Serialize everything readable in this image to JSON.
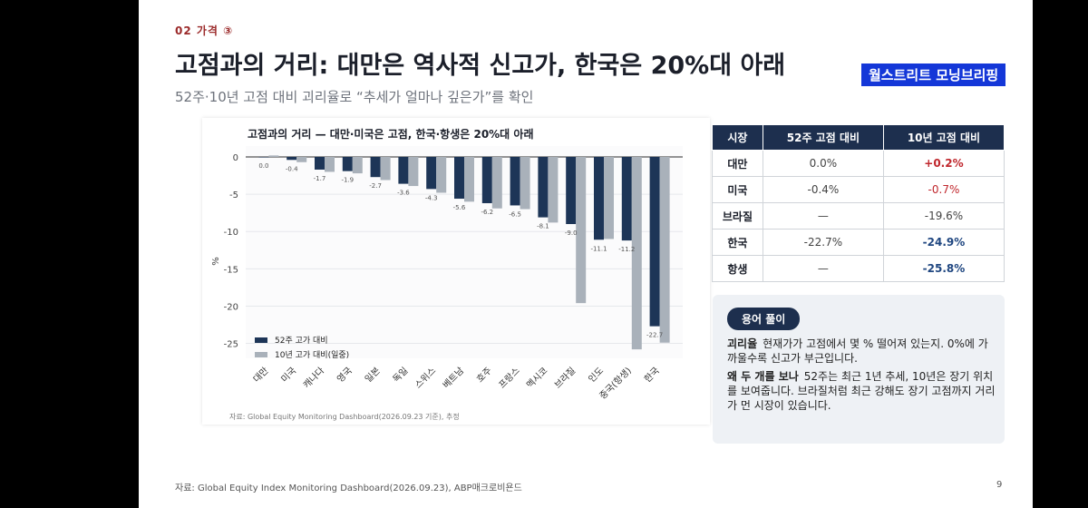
{
  "section": "02  가격 ③",
  "title": "고점과의 거리: 대만은 역사적 신고가, 한국은 20%대 아래",
  "subtitle": "52주·10년 고점 대비 괴리율로 “추세가 얼마나 깊은가”를 확인",
  "badge": "월스트리트 모닝브리핑",
  "chart_data": {
    "type": "bar",
    "title": "고점과의 거리 — 대만·미국은 고점, 한국·항생은 20%대 아래",
    "ylabel": "%",
    "ylim": [
      -27,
      0
    ],
    "yticks": [
      0,
      -5,
      -10,
      -15,
      -20,
      -25
    ],
    "categories": [
      "대만",
      "미국",
      "캐나다",
      "영국",
      "일본",
      "독일",
      "스위스",
      "베트남",
      "호주",
      "프랑스",
      "멕시코",
      "브라질",
      "인도",
      "중국(항생)",
      "한국"
    ],
    "series": [
      {
        "name": "52주 고가 대비",
        "color": "#1d3557",
        "values": [
          0.0,
          -0.4,
          -1.7,
          -1.9,
          -2.7,
          -3.6,
          -4.3,
          -5.6,
          -6.2,
          -6.5,
          -8.1,
          -9.0,
          -11.1,
          -11.2,
          -22.7
        ]
      },
      {
        "name": "10년 고가 대비(일중)",
        "color": "#a9b1ba",
        "values": [
          0.2,
          -0.7,
          -2.0,
          -2.2,
          -3.1,
          -3.9,
          -4.8,
          -6.0,
          -6.9,
          -7.0,
          -8.8,
          -19.6,
          -11.0,
          -25.8,
          -24.9
        ]
      }
    ],
    "data_labels": [
      "0.0",
      "-0.4",
      "-1.7",
      "-1.9",
      "-2.7",
      "-3.6",
      "-4.3",
      "-5.6",
      "-6.2",
      "-6.5",
      "-8.1",
      "-9.0",
      "-11.1",
      "-11.2",
      "-22.7"
    ],
    "legend_position": "bottom-left",
    "grid": true,
    "source": "자료: Global Equity Monitoring Dashboard(2026.09.23 기준), 추정"
  },
  "table": {
    "headers": [
      "시장",
      "52주 고점 대비",
      "10년 고점 대비"
    ],
    "rows": [
      {
        "market": "대만",
        "w52": "0.0%",
        "y10": "+0.2%",
        "y10_style": "pos"
      },
      {
        "market": "미국",
        "w52": "-0.4%",
        "y10": "-0.7%",
        "y10_style": "neg-r"
      },
      {
        "market": "브라질",
        "w52": "—",
        "y10": "-19.6%",
        "y10_style": "neg"
      },
      {
        "market": "한국",
        "w52": "-22.7%",
        "y10": "-24.9%",
        "y10_style": "neg-b"
      },
      {
        "market": "항생",
        "w52": "—",
        "y10": "-25.8%",
        "y10_style": "neg-b"
      }
    ]
  },
  "glossary": {
    "title": "용어 풀이",
    "items": [
      {
        "term": "괴리율",
        "text": "현재가가 고점에서 몇 % 떨어져 있는지. 0%에 가까울수록 신고가 부근입니다."
      },
      {
        "term": "왜 두 개를 보나",
        "text": "52주는 최근 1년 추세, 10년은 장기 위치를 보여줍니다. 브라질처럼 최근 강해도 장기 고점까지 거리가 먼 시장이 있습니다."
      }
    ]
  },
  "footer": "자료: Global Equity Index Monitoring Dashboard(2026.09.23), ABP매크로비욘드",
  "page_number": "9"
}
